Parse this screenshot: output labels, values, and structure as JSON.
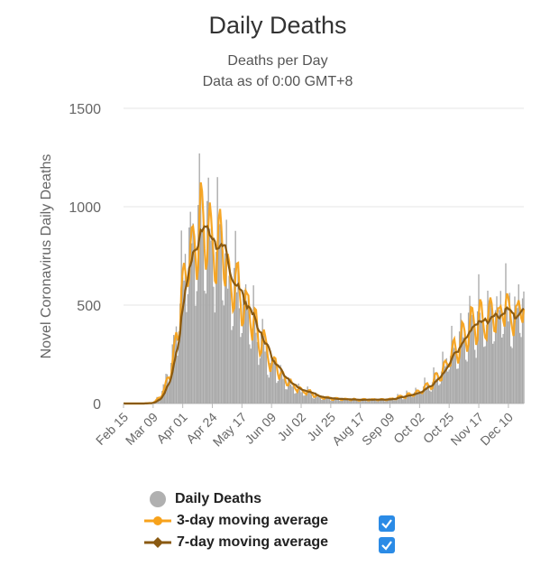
{
  "chart_data": {
    "type": "bar",
    "title": "Daily Deaths",
    "subtitle_line1": "Deaths per Day",
    "subtitle_line2": "Data as of 0:00 GMT+8",
    "ylabel": "Novel Coronavirus Daily Deaths",
    "ylim": [
      0,
      1500
    ],
    "yticks": [
      0,
      500,
      1000,
      1500
    ],
    "xticks": [
      "Feb 15",
      "Mar 09",
      "Apr 01",
      "Apr 24",
      "May 17",
      "Jun 09",
      "Jul 02",
      "Jul 25",
      "Aug 17",
      "Sep 09",
      "Oct 02",
      "Oct 25",
      "Nov 17",
      "Dec 10"
    ],
    "grid": true,
    "legend_position": "bottom",
    "start_date": "2020-02-15",
    "end_date": "2020-12-22",
    "daily_deaths_shape": {
      "dates": [
        "2020-02-15",
        "2020-03-01",
        "2020-03-09",
        "2020-03-16",
        "2020-03-23",
        "2020-03-30",
        "2020-04-05",
        "2020-04-10",
        "2020-04-17",
        "2020-04-24",
        "2020-05-01",
        "2020-05-10",
        "2020-05-17",
        "2020-05-25",
        "2020-06-01",
        "2020-06-09",
        "2020-06-20",
        "2020-07-02",
        "2020-07-15",
        "2020-07-25",
        "2020-08-10",
        "2020-08-17",
        "2020-09-01",
        "2020-09-09",
        "2020-09-20",
        "2020-10-02",
        "2020-10-10",
        "2020-10-18",
        "2020-10-25",
        "2020-11-01",
        "2020-11-10",
        "2020-11-17",
        "2020-11-25",
        "2020-12-01",
        "2020-12-10",
        "2020-12-22"
      ],
      "values": [
        0,
        0,
        5,
        60,
        220,
        560,
        820,
        960,
        930,
        900,
        760,
        660,
        560,
        440,
        330,
        230,
        130,
        70,
        40,
        25,
        20,
        20,
        22,
        25,
        40,
        70,
        110,
        170,
        240,
        330,
        410,
        440,
        470,
        500,
        490,
        530
      ]
    },
    "series": [
      {
        "name": "Daily Deaths",
        "color": "#b0b0b0",
        "marker": "circle"
      },
      {
        "name": "3-day moving average",
        "color": "#f7a21b",
        "marker": "circle",
        "checked": true
      },
      {
        "name": "7-day moving average",
        "color": "#8a5a12",
        "marker": "diamond",
        "checked": true
      }
    ]
  }
}
